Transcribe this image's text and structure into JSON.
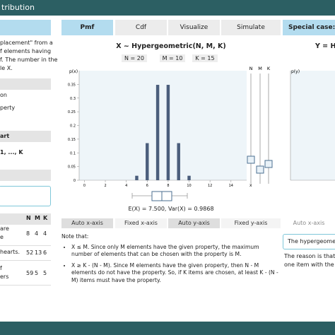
{
  "header": {
    "title": "tribution"
  },
  "left_panel": {
    "intro_lines": [
      "placement\" from a",
      "f elements having",
      "f. The number in the",
      "le X."
    ],
    "items": [
      "on",
      "perty"
    ],
    "section": "art",
    "range": "1, ..., K",
    "table": {
      "columns": [
        "N",
        "M",
        "K"
      ],
      "rows": [
        {
          "label_lines": [
            "are",
            "e"
          ],
          "values": [
            8,
            4,
            4
          ]
        },
        {
          "label_lines": [
            "hearts."
          ],
          "values": [
            52,
            13,
            6
          ]
        },
        {
          "label_lines": [
            "f",
            "ers"
          ],
          "values": [
            59,
            5,
            5
          ]
        }
      ]
    }
  },
  "tabs": [
    "Pmf",
    "Cdf",
    "Visualize",
    "Simulate"
  ],
  "chart_data": {
    "type": "bar",
    "title": "X ~ Hypergeometric(N, M, K)",
    "params": [
      "N = 20",
      "M = 10",
      "K = 15"
    ],
    "y_label": "p(x)",
    "x_label": "x",
    "x": [
      5,
      6,
      7,
      8,
      9,
      10
    ],
    "values": [
      0.0163,
      0.1354,
      0.3483,
      0.3483,
      0.1354,
      0.0163
    ],
    "color": "#4b5e7c",
    "xlim": [
      -0.5,
      15.5
    ],
    "xticks": [
      0,
      2,
      4,
      6,
      8,
      10,
      12,
      14
    ],
    "ylim": [
      0,
      0.4
    ],
    "yticks": [
      0,
      0.05,
      0.1,
      0.15,
      0.2,
      0.25,
      0.3,
      0.35
    ],
    "slider_labels": [
      "N",
      "M",
      "K"
    ],
    "summary": "E(X) = 7.500, Var(X) = 0.9868"
  },
  "axis_buttons": [
    "Auto x-axis",
    "Fixed x-axis",
    "Auto y-axis",
    "Fixed y-axis"
  ],
  "note": {
    "title": "Note that:",
    "bullets": [
      "X ≤ M. Since only M elements have the given property, the maximum number of elements that can be chosen with the property is M.",
      "X ≥ K - (N - M). Since M elements have the given property, then N - M elements do not have the property. So, if K items are chosen, at least K - (N - M) items must have the property."
    ]
  },
  "right_panel": {
    "tab": "Special case: B",
    "chart_title": "Y = H",
    "y_label": "p(y)",
    "button": "Auto x-axis",
    "input_text": "The hypergeometric",
    "lines": [
      "The reason is that, if",
      "one item with the p"
    ]
  }
}
